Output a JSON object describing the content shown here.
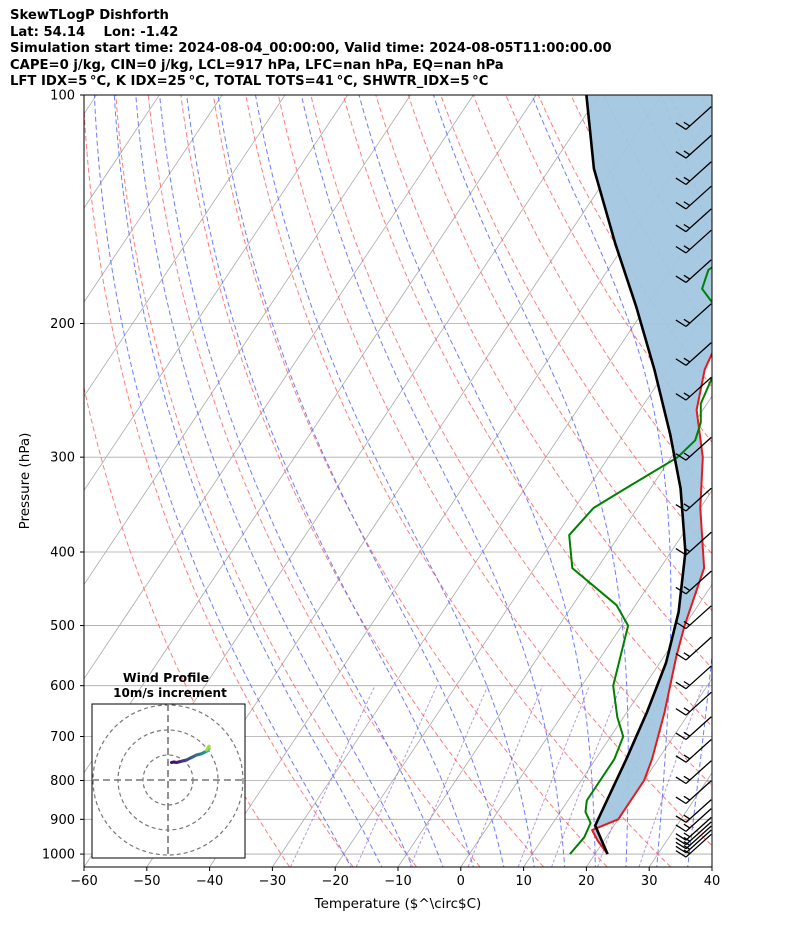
{
  "header": {
    "title": "SkewTLogP Dishforth",
    "location": "Lat: 54.14    Lon: -1.42",
    "times": "Simulation start time: 2024-08-04_00:00:00, Valid time: 2024-08-05T11:00:00.00",
    "params1": "CAPE=0 j/kg, CIN=0 j/kg, LCL=917 hPa, LFC=nan hPa, EQ=nan hPa",
    "params2": "LFT IDX=5 °C, K IDX=25 °C, TOTAL TOTS=41 °C, SHWTR_IDX=5 °C"
  },
  "colors": {
    "temperature": "#e41a1c",
    "dewpoint": "#008000",
    "parcel": "#000000",
    "cape_fill": "#a2c6e0",
    "dry_adiabat": "#ff6666",
    "moist_adiabat": "#5566ff",
    "mixing_ratio": "#8855cc",
    "isotherm": "#aaaaaa"
  },
  "chart_data": {
    "type": "line",
    "subtype": "skewT-logP",
    "xlabel": "Temperature ($^\\circ$C)",
    "ylabel": "Pressure (hPa)",
    "xlim": [
      -60,
      40
    ],
    "ylim": [
      1040,
      100
    ],
    "y_scale": "log",
    "grid": true,
    "x_ticks": [
      -60,
      -50,
      -40,
      -30,
      -20,
      -10,
      0,
      10,
      20,
      30,
      40
    ],
    "x_tick_labels": [
      "−60",
      "−50",
      "−40",
      "−30",
      "−20",
      "−10",
      "0",
      "10",
      "20",
      "30",
      "40"
    ],
    "y_ticks": [
      1000,
      900,
      800,
      700,
      600,
      500,
      400,
      300,
      200,
      100
    ],
    "y_tick_labels": [
      "1000",
      "900",
      "800",
      "700",
      "600",
      "500",
      "400",
      "300",
      "200",
      "100"
    ],
    "series": [
      {
        "key": "temperature",
        "points": [
          [
            22,
            1000
          ],
          [
            19,
            960
          ],
          [
            17,
            930
          ],
          [
            20,
            900
          ],
          [
            20,
            800
          ],
          [
            19,
            750
          ],
          [
            16,
            650
          ],
          [
            12,
            550
          ],
          [
            10,
            500
          ],
          [
            7,
            420
          ],
          [
            0,
            350
          ],
          [
            -5,
            300
          ],
          [
            -11,
            260
          ],
          [
            -14,
            230
          ],
          [
            -15,
            210
          ],
          [
            -14,
            200
          ],
          [
            -11,
            180
          ],
          [
            -5,
            160
          ],
          [
            1,
            145
          ],
          [
            6,
            130
          ],
          [
            10,
            117
          ],
          [
            13,
            107
          ],
          [
            15,
            100
          ]
        ]
      },
      {
        "key": "dewpoint",
        "points": [
          [
            16,
            1000
          ],
          [
            16.5,
            950
          ],
          [
            16,
            910
          ],
          [
            14,
            880
          ],
          [
            13,
            850
          ],
          [
            13,
            800
          ],
          [
            13,
            750
          ],
          [
            12,
            700
          ],
          [
            9,
            660
          ],
          [
            5,
            600
          ],
          [
            1,
            500
          ],
          [
            -3,
            470
          ],
          [
            -14,
            420
          ],
          [
            -18,
            380
          ],
          [
            -17,
            350
          ],
          [
            -14,
            330
          ],
          [
            -9,
            300
          ],
          [
            -8,
            285
          ],
          [
            -9,
            270
          ],
          [
            -11,
            255
          ],
          [
            -12,
            235
          ],
          [
            -13,
            215
          ],
          [
            -15,
            200
          ],
          [
            -19,
            190
          ],
          [
            -23,
            180
          ],
          [
            -24,
            170
          ],
          [
            -18,
            145
          ],
          [
            -10,
            120
          ],
          [
            -5,
            108
          ],
          [
            -2,
            100
          ]
        ]
      },
      {
        "key": "parcel",
        "points": [
          [
            22,
            1000
          ],
          [
            17,
            917
          ],
          [
            16.2,
            850
          ],
          [
            14.9,
            750
          ],
          [
            13.2,
            650
          ],
          [
            11,
            560
          ],
          [
            7.6,
            480
          ],
          [
            2.3,
            400
          ],
          [
            -5.2,
            330
          ],
          [
            -12.6,
            280
          ],
          [
            -22,
            230
          ],
          [
            -31.6,
            190
          ],
          [
            -41.6,
            157
          ],
          [
            -53,
            125
          ],
          [
            -62,
            100
          ]
        ]
      }
    ],
    "cape_shaded_between": [
      "parcel",
      "temperature"
    ],
    "wind_barbs": {
      "pressures_hPa": [
        1000,
        987,
        975,
        963,
        950,
        925,
        900,
        850,
        800,
        750,
        700,
        650,
        600,
        550,
        500,
        450,
        400,
        350,
        300,
        250,
        225,
        200,
        175,
        160,
        150,
        140,
        130,
        120,
        110
      ],
      "speeds_kt": [
        15,
        15,
        15,
        15,
        15,
        15,
        15,
        15,
        15,
        15,
        15,
        15,
        15,
        15,
        15,
        15,
        15,
        15,
        15,
        15,
        15,
        15,
        15,
        15,
        15,
        15,
        15,
        15,
        15
      ]
    }
  },
  "hodograph": {
    "title_line1": "Wind Profile",
    "title_line2": "10m/s increment",
    "points": [
      [
        -1,
        3
      ],
      [
        0,
        3.2
      ],
      [
        1,
        3
      ],
      [
        3,
        3.5
      ],
      [
        5,
        4
      ],
      [
        7,
        5
      ],
      [
        9,
        6
      ],
      [
        11,
        6.5
      ],
      [
        13,
        7.5
      ],
      [
        14,
        8.5
      ],
      [
        14,
        9.5
      ],
      [
        13,
        8
      ]
    ],
    "colors": [
      "#3b0f70",
      "#3b0f70",
      "#4b1a7a",
      "#453781",
      "#3f4a8a",
      "#355f8d",
      "#2a788e",
      "#21918c",
      "#27ad81",
      "#5ec962",
      "#aadc32",
      "#fde725"
    ]
  }
}
